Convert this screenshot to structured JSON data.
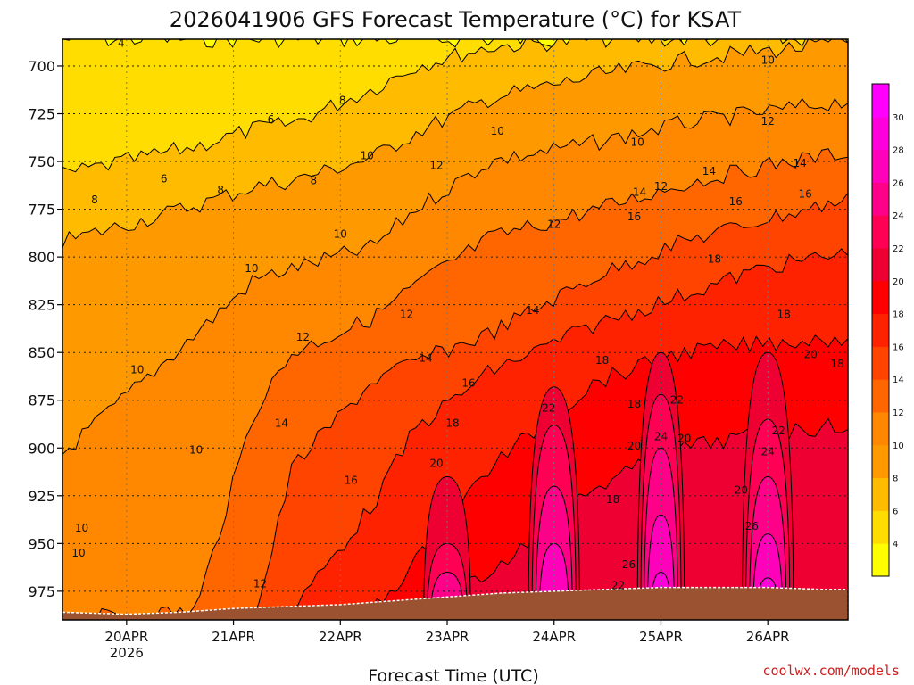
{
  "chart_data": {
    "type": "heatmap",
    "title": "2026041906 GFS Forecast Temperature (°C) for KSAT",
    "xlabel": "Forecast Time (UTC)",
    "ylabel": "",
    "credit": "coolwx.com/models",
    "x_ticks": [
      "20APR",
      "21APR",
      "22APR",
      "23APR",
      "24APR",
      "25APR",
      "26APR"
    ],
    "x_year": "2026",
    "y_ticks": [
      700,
      725,
      750,
      775,
      800,
      825,
      850,
      875,
      900,
      925,
      950,
      975
    ],
    "ylim": [
      990,
      686
    ],
    "xlim": [
      -0.6,
      6.75
    ],
    "colorbar": {
      "levels": [
        4,
        6,
        8,
        10,
        12,
        14,
        16,
        18,
        20,
        22,
        24,
        26,
        28,
        30
      ],
      "colors": [
        "#ffff00",
        "#ffdd00",
        "#ffbb00",
        "#ff9900",
        "#ff8800",
        "#ff6600",
        "#ff4400",
        "#ff2200",
        "#ff0000",
        "#ee0033",
        "#ff0055",
        "#ff0088",
        "#ff00bb",
        "#ff00dd",
        "#ff00ff"
      ]
    },
    "band_colors": [
      "#ffff00",
      "#ffdd00",
      "#ffbb00",
      "#ff9900",
      "#ff8800",
      "#ff6600",
      "#ff4400",
      "#ff2200",
      "#ff0000",
      "#ee0033",
      "#ff0055",
      "#ff0088",
      "#ff00bb",
      "#ff00dd"
    ],
    "isotherm_top": [
      [
        -0.6,
        0.65,
        1.2,
        1.55,
        2.3,
        2.7,
        3.4,
        4.4,
        5.2,
        6.0,
        6.75
      ],
      [
        [
          -0.6,
          0.65,
          1.2,
          1.55,
          2.3,
          2.7,
          3.4,
          4.4,
          5.2,
          6.0,
          6.75
        ],
        [
          686,
          686,
          686,
          686,
          686,
          686,
          686,
          686,
          686,
          686,
          686
        ]
      ],
      [
        [
          -0.6,
          0.65,
          1.2,
          1.55,
          2.3,
          2.7,
          3.4,
          4.4,
          5.2,
          6.0,
          6.75
        ],
        [
          757,
          742,
          733,
          730,
          712,
          700,
          690,
          686,
          686,
          686,
          686
        ]
      ],
      [
        [
          -0.6,
          0.65,
          1.2,
          1.55,
          2.3,
          2.7,
          3.4,
          4.4,
          5.2,
          6.0,
          6.75
        ],
        [
          792,
          773,
          763,
          760,
          748,
          735,
          717,
          705,
          697,
          692,
          688
        ]
      ],
      [
        [
          -0.6,
          0.65,
          1.2,
          1.55,
          2.3,
          2.7,
          3.4,
          4.4,
          5.2,
          6.0,
          6.75
        ],
        [
          903,
          840,
          812,
          806,
          795,
          775,
          750,
          740,
          730,
          724,
          718
        ]
      ],
      [
        [
          -0.6,
          0.65,
          1.2,
          1.55,
          2.3,
          2.7,
          3.4,
          4.4,
          5.2,
          6.0,
          6.75
        ],
        [
          990,
          985,
          880,
          850,
          832,
          815,
          790,
          775,
          762,
          752,
          745
        ]
      ],
      [
        [
          -0.6,
          0.65,
          1.2,
          1.55,
          2.3,
          2.7,
          3.4,
          4.4,
          5.2,
          6.0,
          6.75
        ],
        [
          990,
          990,
          990,
          910,
          865,
          855,
          840,
          810,
          792,
          780,
          770
        ]
      ],
      [
        [
          -0.6,
          0.65,
          1.2,
          1.55,
          2.3,
          2.7,
          3.4,
          4.4,
          5.2,
          6.0,
          6.75
        ],
        [
          990,
          990,
          990,
          985,
          930,
          890,
          860,
          835,
          820,
          805,
          798
        ]
      ],
      [
        [
          -0.6,
          0.65,
          1.2,
          1.55,
          2.3,
          2.7,
          3.4,
          4.4,
          5.2,
          6.0,
          6.75
        ],
        [
          990,
          990,
          990,
          990,
          985,
          960,
          910,
          865,
          850,
          845,
          842
        ]
      ],
      [
        [
          -0.6,
          0.65,
          1.2,
          1.55,
          2.3,
          2.7,
          3.4,
          4.4,
          5.2,
          6.0,
          6.75
        ],
        [
          990,
          990,
          990,
          990,
          990,
          990,
          965,
          920,
          900,
          892,
          888
        ]
      ],
      [
        [
          -0.6,
          0.65,
          1.2,
          1.55,
          2.3,
          2.7,
          3.4,
          4.4,
          5.2,
          6.0,
          6.75
        ],
        [
          990,
          990,
          990,
          990,
          990,
          990,
          990,
          990,
          990,
          990,
          990
        ]
      ],
      [
        [
          -0.6,
          0.65,
          1.2,
          1.55,
          2.3,
          2.7,
          3.4,
          4.4,
          5.2,
          6.0,
          6.75
        ],
        [
          990,
          990,
          990,
          990,
          990,
          990,
          990,
          990,
          990,
          990,
          990
        ]
      ],
      [
        [
          -0.6,
          0.65,
          1.2,
          1.55,
          2.3,
          2.7,
          3.4,
          4.4,
          5.2,
          6.0,
          6.75
        ],
        [
          990,
          990,
          990,
          990,
          990,
          990,
          990,
          990,
          990,
          990,
          990
        ]
      ],
      [
        [
          -0.6,
          0.65,
          1.2,
          1.55,
          2.3,
          2.7,
          3.4,
          4.4,
          5.2,
          6.0,
          6.75
        ],
        [
          990,
          990,
          990,
          990,
          990,
          990,
          990,
          990,
          990,
          990,
          990
        ]
      ]
    ],
    "warm_pockets": [
      {
        "x": 3.0,
        "halfwidth": 0.22,
        "bands": [
          [
            20,
            915
          ],
          [
            22,
            950
          ],
          [
            24,
            965
          ]
        ]
      },
      {
        "x": 4.0,
        "halfwidth": 0.24,
        "bands": [
          [
            20,
            868
          ],
          [
            22,
            888
          ],
          [
            24,
            920
          ],
          [
            26,
            950
          ]
        ]
      },
      {
        "x": 5.0,
        "halfwidth": 0.22,
        "bands": [
          [
            20,
            850
          ],
          [
            22,
            872
          ],
          [
            24,
            900
          ],
          [
            26,
            935
          ],
          [
            28,
            965
          ]
        ]
      },
      {
        "x": 6.0,
        "halfwidth": 0.24,
        "bands": [
          [
            20,
            850
          ],
          [
            22,
            885
          ],
          [
            24,
            915
          ],
          [
            26,
            945
          ],
          [
            28,
            968
          ]
        ]
      }
    ],
    "ground": {
      "x": [
        -0.6,
        0.0,
        0.5,
        1.0,
        1.5,
        2.0,
        2.5,
        3.0,
        3.5,
        4.0,
        4.5,
        5.0,
        5.5,
        6.0,
        6.5,
        6.75
      ],
      "p": [
        986,
        987,
        986,
        984,
        983,
        982,
        980,
        978,
        976,
        975,
        974,
        973,
        973,
        973,
        974,
        974
      ]
    },
    "contour_labels": [
      {
        "x": -0.05,
        "p": 688,
        "text": "4"
      },
      {
        "x": 0.35,
        "p": 759,
        "text": "6"
      },
      {
        "x": 1.35,
        "p": 728,
        "text": "6"
      },
      {
        "x": -0.3,
        "p": 770,
        "text": "8"
      },
      {
        "x": 0.88,
        "p": 765,
        "text": "8"
      },
      {
        "x": 2.02,
        "p": 718,
        "text": "8"
      },
      {
        "x": 1.75,
        "p": 760,
        "text": "8"
      },
      {
        "x": 3.47,
        "p": 734,
        "text": "10"
      },
      {
        "x": 4.78,
        "p": 740,
        "text": "10"
      },
      {
        "x": 6.0,
        "p": 697,
        "text": "10"
      },
      {
        "x": 2.25,
        "p": 747,
        "text": "10"
      },
      {
        "x": 2.0,
        "p": 788,
        "text": "10"
      },
      {
        "x": 1.17,
        "p": 806,
        "text": "10"
      },
      {
        "x": 0.1,
        "p": 859,
        "text": "10"
      },
      {
        "x": 0.65,
        "p": 901,
        "text": "10"
      },
      {
        "x": -0.42,
        "p": 942,
        "text": "10"
      },
      {
        "x": -0.45,
        "p": 955,
        "text": "10"
      },
      {
        "x": 1.25,
        "p": 971,
        "text": "12"
      },
      {
        "x": 1.65,
        "p": 842,
        "text": "12"
      },
      {
        "x": 2.9,
        "p": 752,
        "text": "12"
      },
      {
        "x": 4.0,
        "p": 783,
        "text": "12"
      },
      {
        "x": 5.0,
        "p": 763,
        "text": "12"
      },
      {
        "x": 6.0,
        "p": 729,
        "text": "12"
      },
      {
        "x": 2.62,
        "p": 830,
        "text": "12"
      },
      {
        "x": 1.45,
        "p": 887,
        "text": "14"
      },
      {
        "x": 2.8,
        "p": 853,
        "text": "14"
      },
      {
        "x": 3.8,
        "p": 828,
        "text": "14"
      },
      {
        "x": 4.8,
        "p": 766,
        "text": "14"
      },
      {
        "x": 5.45,
        "p": 755,
        "text": "14"
      },
      {
        "x": 6.3,
        "p": 751,
        "text": "14"
      },
      {
        "x": 2.1,
        "p": 917,
        "text": "16"
      },
      {
        "x": 3.2,
        "p": 866,
        "text": "16"
      },
      {
        "x": 4.75,
        "p": 779,
        "text": "16"
      },
      {
        "x": 5.7,
        "p": 771,
        "text": "16"
      },
      {
        "x": 6.35,
        "p": 767,
        "text": "16"
      },
      {
        "x": 3.05,
        "p": 887,
        "text": "18"
      },
      {
        "x": 4.45,
        "p": 854,
        "text": "18"
      },
      {
        "x": 4.75,
        "p": 877,
        "text": "18"
      },
      {
        "x": 4.55,
        "p": 927,
        "text": "18"
      },
      {
        "x": 5.5,
        "p": 801,
        "text": "18"
      },
      {
        "x": 6.15,
        "p": 830,
        "text": "18"
      },
      {
        "x": 6.65,
        "p": 856,
        "text": "18"
      },
      {
        "x": 2.9,
        "p": 908,
        "text": "20"
      },
      {
        "x": 4.75,
        "p": 899,
        "text": "20"
      },
      {
        "x": 5.22,
        "p": 895,
        "text": "20"
      },
      {
        "x": 5.75,
        "p": 922,
        "text": "20"
      },
      {
        "x": 6.4,
        "p": 851,
        "text": "20"
      },
      {
        "x": 3.95,
        "p": 879,
        "text": "22"
      },
      {
        "x": 5.15,
        "p": 875,
        "text": "22"
      },
      {
        "x": 6.1,
        "p": 891,
        "text": "22"
      },
      {
        "x": 4.6,
        "p": 972,
        "text": "22"
      },
      {
        "x": 5.0,
        "p": 894,
        "text": "24"
      },
      {
        "x": 6.0,
        "p": 902,
        "text": "24"
      },
      {
        "x": 4.7,
        "p": 961,
        "text": "26"
      },
      {
        "x": 5.85,
        "p": 941,
        "text": "26"
      }
    ]
  }
}
